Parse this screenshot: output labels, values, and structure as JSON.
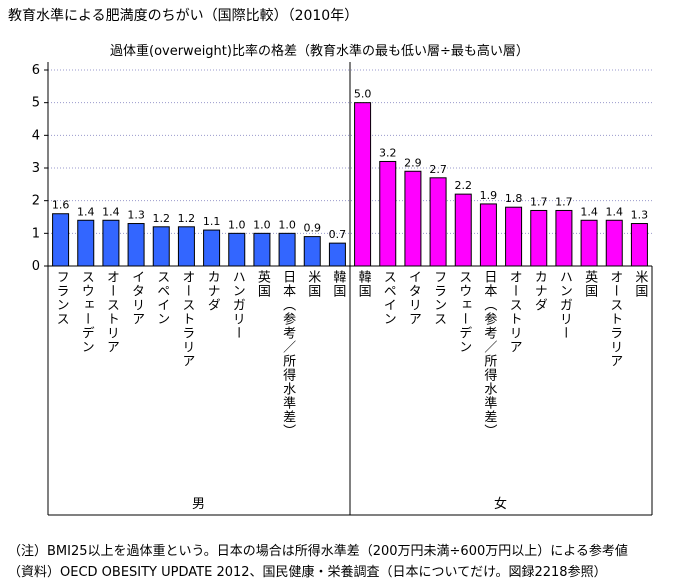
{
  "title": "教育水準による肥満度のちがい（国際比較）（2010年）",
  "notes": [
    "（注）BMI25以上を過体重という。日本の場合は所得水準差（200万円未満÷600万円以上）による参考値",
    "（資料）OECD OBESITY UPDATE 2012、国民健康・栄養調査（日本についてだけ。図録2218参照）"
  ],
  "chart_data": {
    "type": "bar",
    "title": "過体重(overweight)比率の格差（教育水準の最も低い層÷最も高い層）",
    "ylim": [
      0,
      6
    ],
    "yticks": [
      "0",
      "1",
      "2",
      "3",
      "4",
      "5",
      "6"
    ],
    "groups": [
      {
        "name": "男",
        "color": "#3366ff",
        "categories": [
          "フランス",
          "スウェーデン",
          "オーストリア",
          "イタリア",
          "スペイン",
          "オーストラリア",
          "カナダ",
          "ハンガリー",
          "英国",
          "日本（参考／所得水準差）",
          "米国",
          "韓国"
        ],
        "values": [
          1.6,
          1.4,
          1.4,
          1.3,
          1.2,
          1.2,
          1.1,
          1.0,
          1.0,
          1.0,
          0.9,
          0.7
        ],
        "labels": [
          "1.6",
          "1.4",
          "1.4",
          "1.3",
          "1.2",
          "1.2",
          "1.1",
          "1.0",
          "1.0",
          "1.0",
          "0.9",
          "0.7"
        ]
      },
      {
        "name": "女",
        "color": "#ff00ff",
        "categories": [
          "韓国",
          "スペイン",
          "イタリア",
          "フランス",
          "スウェーデン",
          "日本（参考／所得水準差）",
          "オーストリア",
          "カナダ",
          "ハンガリー",
          "英国",
          "オーストラリア",
          "米国"
        ],
        "values": [
          5.0,
          3.2,
          2.9,
          2.7,
          2.2,
          1.9,
          1.8,
          1.7,
          1.7,
          1.4,
          1.4,
          1.3
        ],
        "labels": [
          "5.0",
          "3.2",
          "2.9",
          "2.7",
          "2.2",
          "1.9",
          "1.8",
          "1.7",
          "1.7",
          "1.4",
          "1.4",
          "1.3"
        ]
      }
    ]
  }
}
